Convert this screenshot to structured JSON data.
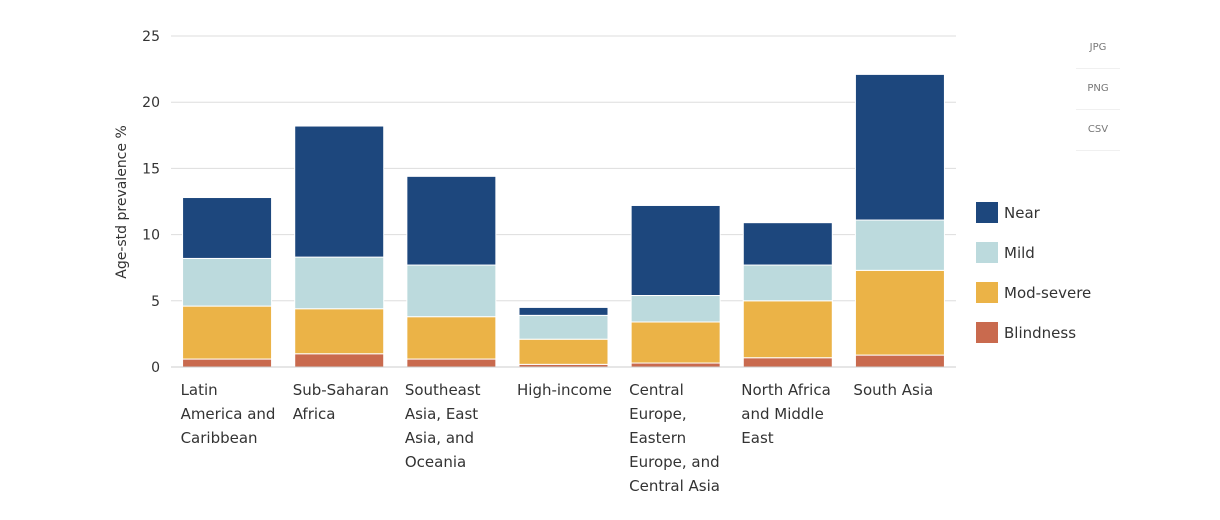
{
  "export": {
    "buttons": [
      "JPG",
      "PNG",
      "CSV"
    ]
  },
  "chart_data": {
    "type": "bar",
    "stacked": true,
    "categories": [
      [
        "Latin",
        "America and",
        "Caribbean"
      ],
      [
        "Sub-Saharan",
        "Africa"
      ],
      [
        "Southeast",
        "Asia, East",
        "Asia, and",
        "Oceania"
      ],
      [
        "High-income"
      ],
      [
        "Central",
        "Europe,",
        "Eastern",
        "Europe, and",
        "Central Asia"
      ],
      [
        "North Africa",
        "and Middle",
        "East"
      ],
      [
        "South Asia"
      ]
    ],
    "series": [
      {
        "name": "Blindness",
        "color": "#c96a4e",
        "values": [
          0.6,
          1.0,
          0.6,
          0.2,
          0.3,
          0.7,
          0.9
        ]
      },
      {
        "name": "Mod-severe",
        "color": "#ebb347",
        "values": [
          4.0,
          3.4,
          3.2,
          1.9,
          3.1,
          4.3,
          6.4
        ]
      },
      {
        "name": "Mild",
        "color": "#bcdadd",
        "values": [
          3.6,
          3.9,
          3.9,
          1.8,
          2.0,
          2.7,
          3.8
        ]
      },
      {
        "name": "Near",
        "color": "#1d477d",
        "values": [
          4.6,
          9.9,
          6.7,
          0.6,
          6.8,
          3.2,
          11.0
        ]
      }
    ],
    "legend": {
      "placement": "right",
      "order": [
        "Near",
        "Mild",
        "Mod-severe",
        "Blindness"
      ]
    },
    "ylabel": "Age-std prevalence %",
    "xlabel": "",
    "ylim": [
      0,
      25
    ],
    "yticks": [
      0,
      5,
      10,
      15,
      20,
      25
    ],
    "grid": true
  }
}
